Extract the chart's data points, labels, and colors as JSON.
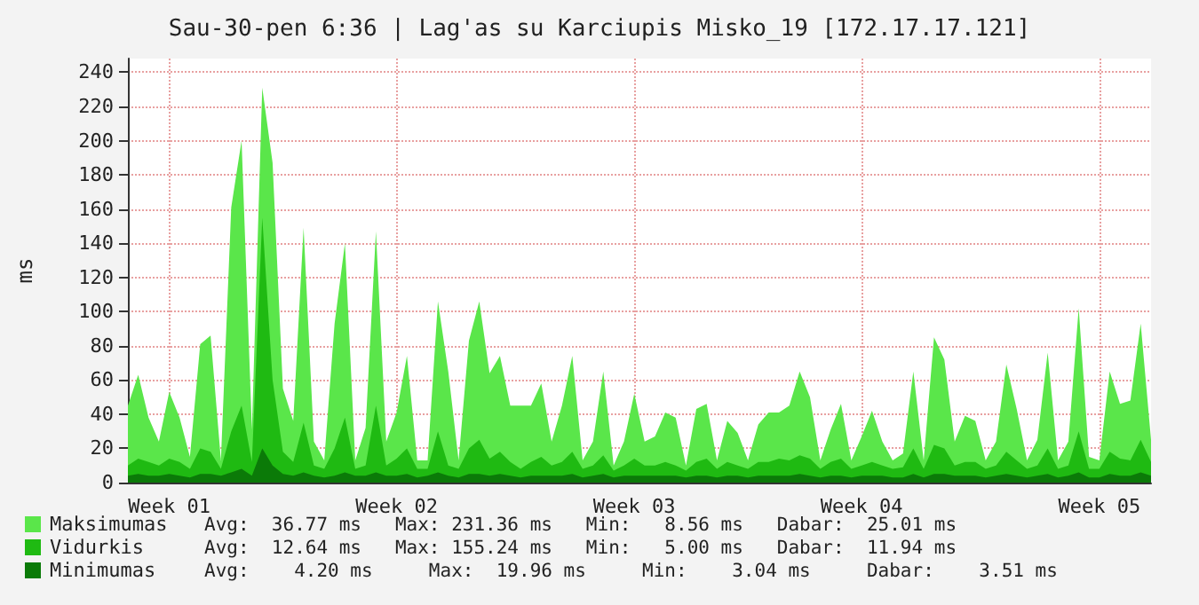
{
  "chart_data": {
    "type": "area",
    "title": "Sau-30-pen 6:36 | Lag'as su Karciupis Misko_19 [172.17.17.121]",
    "ylabel": "ms",
    "categories": [
      null,
      null,
      null,
      null,
      "Week 01",
      null,
      null,
      null,
      null,
      null,
      null,
      null,
      null,
      null,
      null,
      null,
      null,
      null,
      null,
      null,
      null,
      null,
      null,
      null,
      null,
      null,
      "Week 02",
      null,
      null,
      null,
      null,
      null,
      null,
      null,
      null,
      null,
      null,
      null,
      null,
      null,
      null,
      null,
      null,
      null,
      null,
      null,
      null,
      null,
      null,
      "Week 03",
      null,
      null,
      null,
      null,
      null,
      null,
      null,
      null,
      null,
      null,
      null,
      null,
      null,
      null,
      null,
      null,
      null,
      null,
      null,
      null,
      null,
      "Week 04",
      null,
      null,
      null,
      null,
      null,
      null,
      null,
      null,
      null,
      null,
      null,
      null,
      null,
      null,
      null,
      null,
      null,
      null,
      null,
      null,
      null,
      null,
      "Week 05",
      null,
      null,
      null,
      null,
      null
    ],
    "series": [
      {
        "name": "Maksimumas",
        "color": "#5ae64a",
        "values": [
          45,
          63,
          38,
          24,
          53,
          38,
          15,
          81,
          86,
          13,
          161,
          200,
          31,
          231,
          187,
          55,
          36,
          149,
          24,
          13,
          93,
          140,
          13,
          32,
          147,
          24,
          41,
          74,
          13,
          13,
          106,
          65,
          13,
          83,
          106,
          64,
          74,
          45,
          45,
          45,
          58,
          24,
          45,
          74,
          13,
          24,
          65,
          10,
          24,
          52,
          24,
          27,
          41,
          38,
          10,
          43,
          46,
          13,
          36,
          29,
          13,
          34,
          41,
          41,
          45,
          65,
          50,
          13,
          31,
          46,
          13,
          27,
          42,
          24,
          13,
          17,
          65,
          13,
          85,
          72,
          24,
          39,
          36,
          13,
          24,
          69,
          43,
          13,
          25,
          76,
          13,
          24,
          102,
          15,
          13,
          65,
          46,
          48,
          93,
          25
        ]
      },
      {
        "name": "Vidurkis",
        "color": "#1fba12",
        "values": [
          10,
          14,
          12,
          10,
          14,
          12,
          8,
          20,
          18,
          8,
          30,
          45,
          12,
          155,
          60,
          18,
          12,
          35,
          10,
          8,
          20,
          38,
          8,
          10,
          45,
          10,
          14,
          20,
          8,
          8,
          30,
          10,
          8,
          20,
          25,
          14,
          18,
          12,
          8,
          12,
          15,
          10,
          12,
          18,
          8,
          10,
          16,
          7,
          10,
          14,
          10,
          10,
          12,
          10,
          7,
          12,
          14,
          8,
          12,
          10,
          8,
          12,
          12,
          14,
          13,
          16,
          14,
          8,
          12,
          14,
          8,
          10,
          12,
          10,
          8,
          9,
          20,
          8,
          22,
          20,
          10,
          12,
          12,
          8,
          10,
          18,
          13,
          8,
          10,
          20,
          8,
          10,
          30,
          8,
          8,
          18,
          14,
          13,
          25,
          12
        ]
      },
      {
        "name": "Minimumas",
        "color": "#0b7a08",
        "values": [
          4,
          5,
          4,
          4,
          5,
          4,
          3,
          5,
          5,
          4,
          6,
          8,
          4,
          20,
          10,
          5,
          4,
          6,
          4,
          3,
          4,
          6,
          4,
          4,
          6,
          4,
          4,
          5,
          3,
          4,
          6,
          4,
          3,
          5,
          5,
          4,
          5,
          4,
          3,
          4,
          4,
          4,
          4,
          5,
          3,
          4,
          5,
          3,
          4,
          4,
          4,
          4,
          4,
          4,
          3,
          4,
          4,
          3,
          4,
          4,
          3,
          4,
          4,
          4,
          4,
          5,
          4,
          3,
          4,
          4,
          3,
          4,
          4,
          4,
          3,
          3,
          5,
          3,
          5,
          5,
          4,
          4,
          4,
          3,
          4,
          5,
          4,
          3,
          4,
          5,
          3,
          4,
          6,
          3,
          3,
          5,
          4,
          4,
          6,
          4
        ]
      }
    ],
    "ylim": [
      0,
      248
    ],
    "yticks": [
      0,
      20,
      40,
      60,
      80,
      100,
      120,
      140,
      160,
      180,
      200,
      220,
      240
    ],
    "grid": true,
    "legend": "bottom left",
    "marker": "none",
    "annotations": [
      "Avg:  36.77 ms   Max: 231.36 ms   Min:   8.56 ms   Dabar:  25.01 ms",
      "Avg:  12.64 ms   Max: 155.24 ms   Min:   5.00 ms   Dabar:  11.94 ms",
      "Avg:    4.20 ms     Max:  19.96 ms     Min:    3.04 ms     Dabar:    3.51 ms"
    ]
  }
}
